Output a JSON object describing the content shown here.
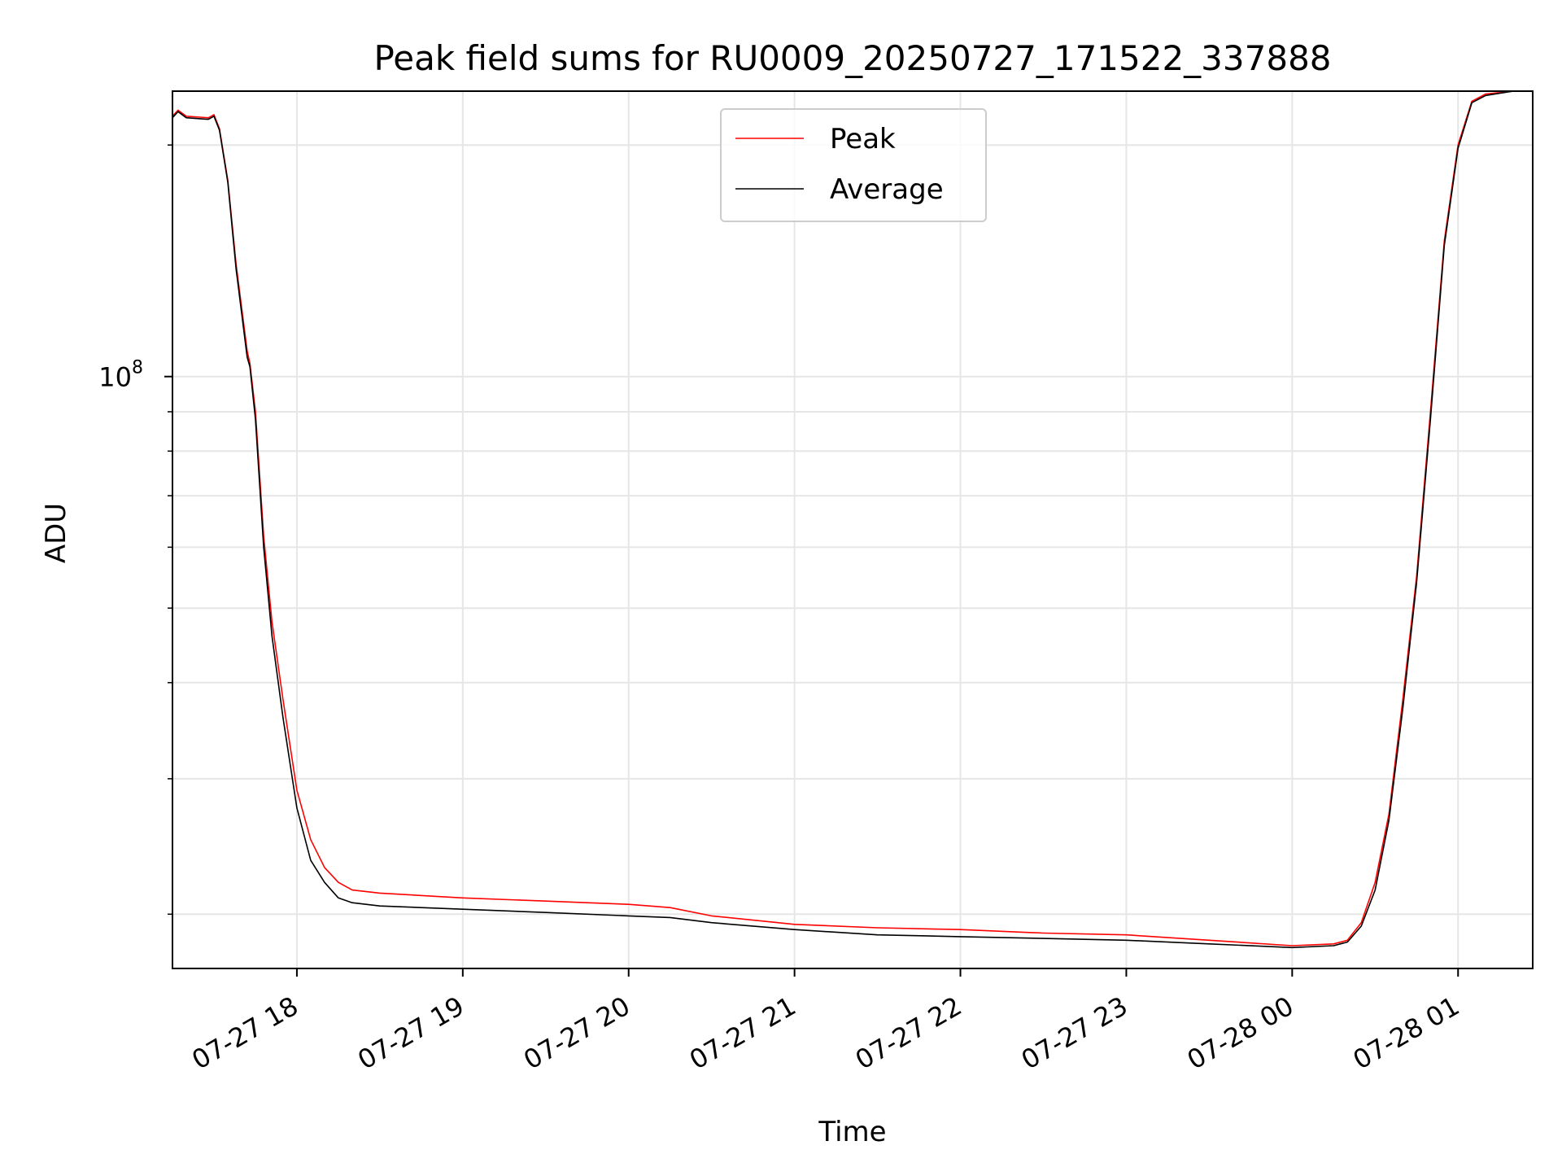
{
  "chart_data": {
    "type": "line",
    "title": "Peak field sums for RU0009_20250727_171522_337888",
    "xlabel": "Time",
    "ylabel": "ADU",
    "y_scale": "log",
    "grid": true,
    "legend_position": "top-center",
    "x_range": [
      "2025-07-27 17:15",
      "2025-07-28 01:27"
    ],
    "ylim": [
      17000000,
      235000000
    ],
    "x_ticks": [
      {
        "value": "2025-07-27 18:00",
        "label": "07-27 18"
      },
      {
        "value": "2025-07-27 19:00",
        "label": "07-27 19"
      },
      {
        "value": "2025-07-27 20:00",
        "label": "07-27 20"
      },
      {
        "value": "2025-07-27 21:00",
        "label": "07-27 21"
      },
      {
        "value": "2025-07-27 22:00",
        "label": "07-27 22"
      },
      {
        "value": "2025-07-27 23:00",
        "label": "07-27 23"
      },
      {
        "value": "2025-07-28 00:00",
        "label": "07-28 00"
      },
      {
        "value": "2025-07-28 01:00",
        "label": "07-28 01"
      }
    ],
    "y_major_ticks": [
      {
        "value": 100000000,
        "base": "10",
        "exp": "8"
      }
    ],
    "y_minor_ticks": [
      20000000,
      30000000,
      40000000,
      50000000,
      60000000,
      70000000,
      80000000,
      90000000,
      200000000
    ],
    "series": [
      {
        "name": "Peak",
        "color": "#ff0000",
        "points": [
          [
            "2025-07-27 17:15",
            218000000
          ],
          [
            "2025-07-27 17:17",
            222000000
          ],
          [
            "2025-07-27 17:20",
            218000000
          ],
          [
            "2025-07-27 17:28",
            217000000
          ],
          [
            "2025-07-27 17:30",
            219000000
          ],
          [
            "2025-07-27 17:32",
            210000000
          ],
          [
            "2025-07-27 17:35",
            180000000
          ],
          [
            "2025-07-27 17:38",
            140000000
          ],
          [
            "2025-07-27 17:42",
            108000000
          ],
          [
            "2025-07-27 17:43",
            104000000
          ],
          [
            "2025-07-27 17:45",
            90000000
          ],
          [
            "2025-07-27 17:48",
            62000000
          ],
          [
            "2025-07-27 17:51",
            48000000
          ],
          [
            "2025-07-27 17:55",
            38000000
          ],
          [
            "2025-07-27 18:00",
            29000000
          ],
          [
            "2025-07-27 18:05",
            25000000
          ],
          [
            "2025-07-27 18:10",
            23000000
          ],
          [
            "2025-07-27 18:15",
            22000000
          ],
          [
            "2025-07-27 18:20",
            21500000
          ],
          [
            "2025-07-27 18:30",
            21300000
          ],
          [
            "2025-07-27 19:00",
            21000000
          ],
          [
            "2025-07-27 19:30",
            20800000
          ],
          [
            "2025-07-27 20:00",
            20600000
          ],
          [
            "2025-07-27 20:15",
            20400000
          ],
          [
            "2025-07-27 20:30",
            19900000
          ],
          [
            "2025-07-27 21:00",
            19400000
          ],
          [
            "2025-07-27 21:30",
            19200000
          ],
          [
            "2025-07-27 22:00",
            19100000
          ],
          [
            "2025-07-27 22:30",
            18900000
          ],
          [
            "2025-07-27 23:00",
            18800000
          ],
          [
            "2025-07-27 23:30",
            18500000
          ],
          [
            "2025-07-28 00:00",
            18200000
          ],
          [
            "2025-07-28 00:15",
            18300000
          ],
          [
            "2025-07-28 00:20",
            18500000
          ],
          [
            "2025-07-28 00:25",
            19500000
          ],
          [
            "2025-07-28 00:30",
            22000000
          ],
          [
            "2025-07-28 00:35",
            27000000
          ],
          [
            "2025-07-28 00:40",
            38000000
          ],
          [
            "2025-07-28 00:45",
            55000000
          ],
          [
            "2025-07-28 00:50",
            90000000
          ],
          [
            "2025-07-28 00:55",
            150000000
          ],
          [
            "2025-07-28 01:00",
            200000000
          ],
          [
            "2025-07-28 01:05",
            228000000
          ],
          [
            "2025-07-28 01:10",
            233000000
          ],
          [
            "2025-07-28 01:20",
            235000000
          ]
        ]
      },
      {
        "name": "Average",
        "color": "#000000",
        "points": [
          [
            "2025-07-27 17:15",
            217000000
          ],
          [
            "2025-07-27 17:17",
            221000000
          ],
          [
            "2025-07-27 17:20",
            217000000
          ],
          [
            "2025-07-27 17:28",
            216000000
          ],
          [
            "2025-07-27 17:30",
            218000000
          ],
          [
            "2025-07-27 17:32",
            209000000
          ],
          [
            "2025-07-27 17:35",
            179000000
          ],
          [
            "2025-07-27 17:38",
            138000000
          ],
          [
            "2025-07-27 17:42",
            106000000
          ],
          [
            "2025-07-27 17:43",
            103000000
          ],
          [
            "2025-07-27 17:45",
            88000000
          ],
          [
            "2025-07-27 17:48",
            60000000
          ],
          [
            "2025-07-27 17:51",
            46000000
          ],
          [
            "2025-07-27 17:55",
            36000000
          ],
          [
            "2025-07-27 18:00",
            27500000
          ],
          [
            "2025-07-27 18:05",
            23500000
          ],
          [
            "2025-07-27 18:10",
            22000000
          ],
          [
            "2025-07-27 18:15",
            21000000
          ],
          [
            "2025-07-27 18:20",
            20700000
          ],
          [
            "2025-07-27 18:30",
            20500000
          ],
          [
            "2025-07-27 19:00",
            20300000
          ],
          [
            "2025-07-27 19:30",
            20100000
          ],
          [
            "2025-07-27 20:00",
            19900000
          ],
          [
            "2025-07-27 20:15",
            19800000
          ],
          [
            "2025-07-27 20:30",
            19500000
          ],
          [
            "2025-07-27 21:00",
            19100000
          ],
          [
            "2025-07-27 21:30",
            18800000
          ],
          [
            "2025-07-27 22:00",
            18700000
          ],
          [
            "2025-07-27 22:30",
            18600000
          ],
          [
            "2025-07-27 23:00",
            18500000
          ],
          [
            "2025-07-27 23:30",
            18300000
          ],
          [
            "2025-07-28 00:00",
            18100000
          ],
          [
            "2025-07-28 00:15",
            18200000
          ],
          [
            "2025-07-28 00:20",
            18400000
          ],
          [
            "2025-07-28 00:25",
            19300000
          ],
          [
            "2025-07-28 00:30",
            21500000
          ],
          [
            "2025-07-28 00:35",
            26500000
          ],
          [
            "2025-07-28 00:40",
            37000000
          ],
          [
            "2025-07-28 00:45",
            54000000
          ],
          [
            "2025-07-28 00:50",
            88000000
          ],
          [
            "2025-07-28 00:55",
            148000000
          ],
          [
            "2025-07-28 01:00",
            198000000
          ],
          [
            "2025-07-28 01:05",
            227000000
          ],
          [
            "2025-07-28 01:10",
            232000000
          ],
          [
            "2025-07-28 01:20",
            235000000
          ]
        ]
      }
    ]
  }
}
